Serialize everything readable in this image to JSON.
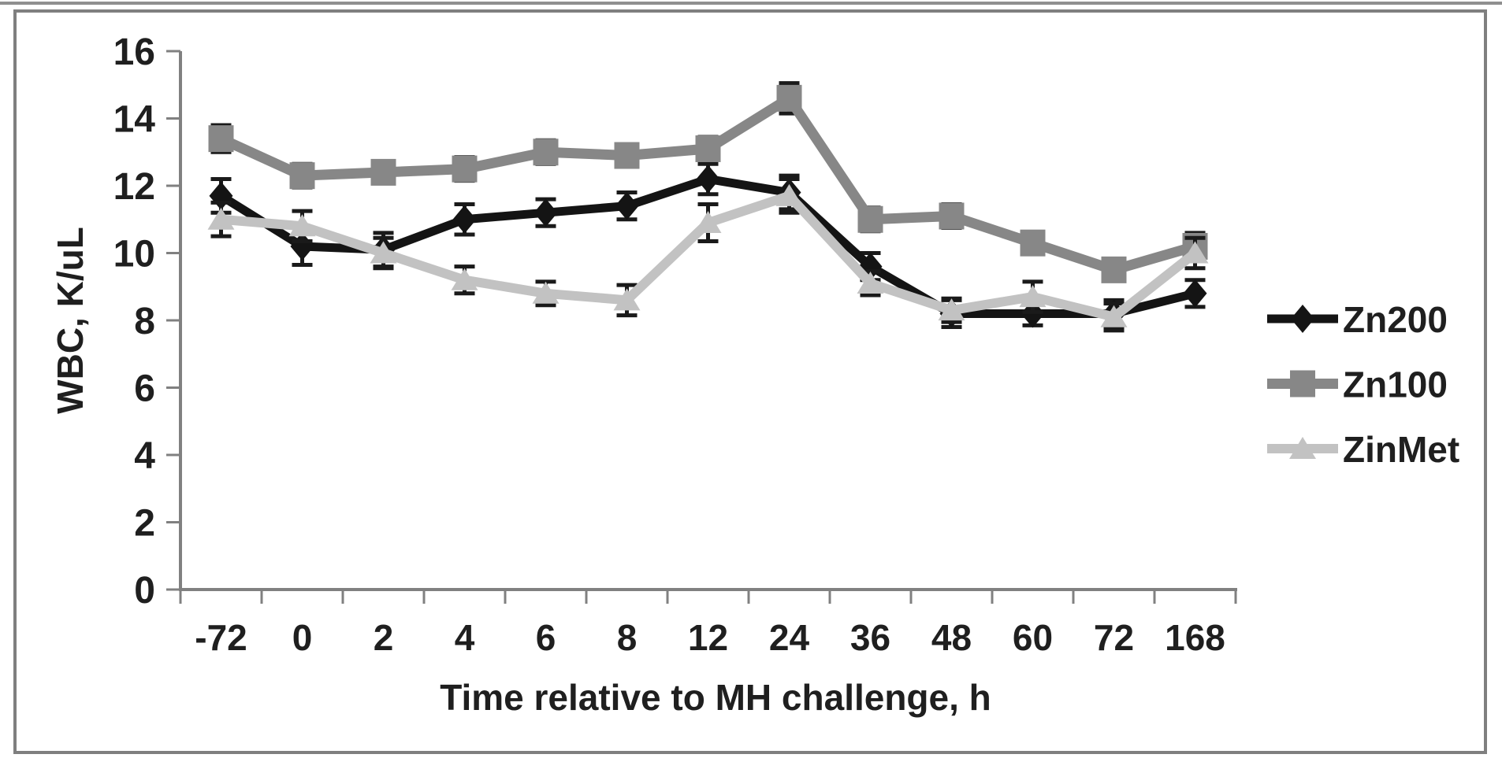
{
  "figure": {
    "background_color": "#ffffff",
    "border_color": "#7f7f7f",
    "axis_color": "#808080",
    "text_color": "#1f1f1f"
  },
  "chart_data": {
    "type": "line",
    "title": "",
    "xlabel": "Time relative to MH challenge, h",
    "ylabel": "WBC, K/uL",
    "categories": [
      "-72",
      "0",
      "2",
      "4",
      "6",
      "8",
      "12",
      "24",
      "36",
      "48",
      "60",
      "72",
      "168"
    ],
    "y_ticks": [
      "0",
      "2",
      "4",
      "6",
      "8",
      "10",
      "12",
      "14",
      "16"
    ],
    "ylim": [
      0,
      16
    ],
    "grid": false,
    "legend_position": "right",
    "error_bar_color": "#1a1a1a",
    "series": [
      {
        "name": "Zn200",
        "marker": "diamond",
        "color": "#141414",
        "values": [
          11.7,
          10.2,
          10.1,
          11.0,
          11.2,
          11.4,
          12.2,
          11.8,
          9.6,
          8.2,
          8.2,
          8.2,
          8.8
        ],
        "errors": [
          0.5,
          0.55,
          0.5,
          0.45,
          0.4,
          0.4,
          0.45,
          0.5,
          0.4,
          0.4,
          0.35,
          0.4,
          0.4
        ]
      },
      {
        "name": "Zn100",
        "marker": "square",
        "color": "#878787",
        "values": [
          13.4,
          12.3,
          12.4,
          12.5,
          13.0,
          12.9,
          13.1,
          14.6,
          11.0,
          11.1,
          10.3,
          9.5,
          10.2
        ],
        "errors": [
          0.4,
          0.35,
          0.3,
          0.35,
          0.35,
          0.3,
          0.35,
          0.45,
          0.35,
          0.35,
          0.3,
          0.3,
          0.4
        ]
      },
      {
        "name": "ZinMet",
        "marker": "triangle",
        "color": "#c2c2c2",
        "values": [
          11.0,
          10.8,
          10.0,
          9.2,
          8.8,
          8.6,
          10.9,
          11.7,
          9.1,
          8.3,
          8.7,
          8.1,
          10.0
        ],
        "errors": [
          0.5,
          0.45,
          0.45,
          0.4,
          0.35,
          0.45,
          0.55,
          0.5,
          0.35,
          0.35,
          0.45,
          0.4,
          0.45
        ]
      }
    ]
  }
}
